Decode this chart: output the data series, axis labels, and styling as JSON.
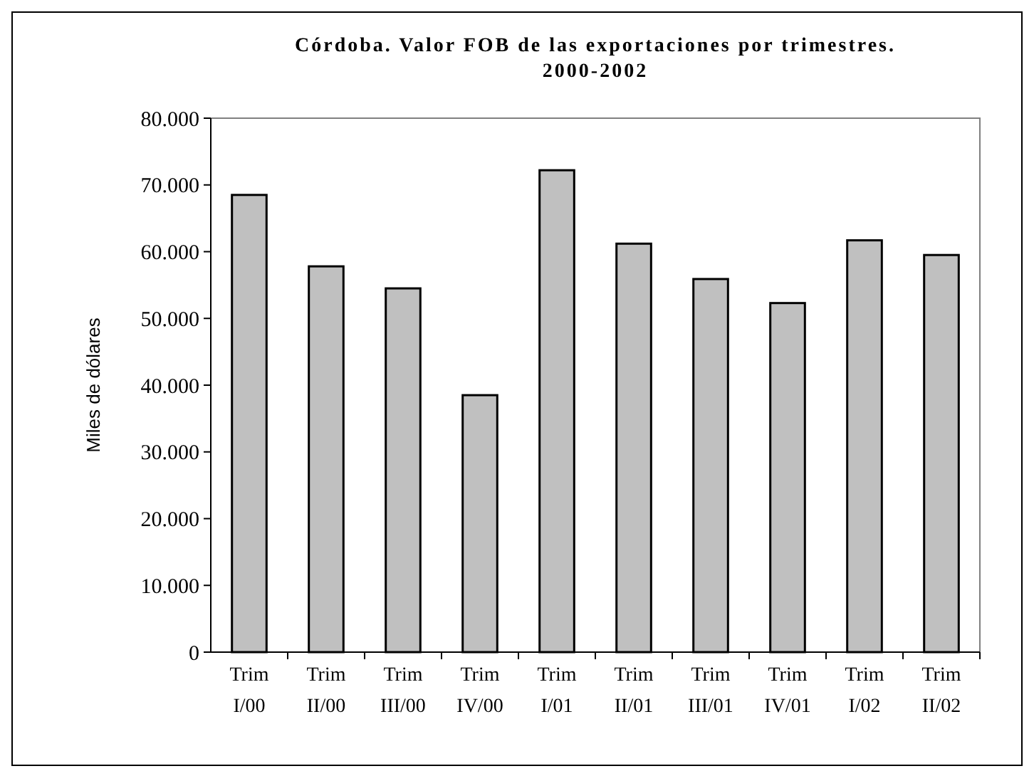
{
  "chart_data": {
    "type": "bar",
    "title": "Córdoba. Valor FOB de las exportaciones por trimestres. 2000-2002",
    "ylabel": "Miles de dólares",
    "categories": [
      "Trim I/00",
      "Trim II/00",
      "Trim III/00",
      "Trim IV/00",
      "Trim I/01",
      "Trim II/01",
      "Trim III/01",
      "Trim IV/01",
      "Trim I/02",
      "Trim II/02"
    ],
    "values": [
      68500,
      57800,
      54500,
      38500,
      72200,
      61200,
      55900,
      52300,
      61700,
      59500
    ],
    "color": "#c0c0c0",
    "ylim": [
      0,
      80000
    ],
    "yticks": [
      {
        "value": 0,
        "label": "0"
      },
      {
        "value": 10000,
        "label": "10.000"
      },
      {
        "value": 20000,
        "label": "20.000"
      },
      {
        "value": 30000,
        "label": "30.000"
      },
      {
        "value": 40000,
        "label": "40.000"
      },
      {
        "value": 50000,
        "label": "50.000"
      },
      {
        "value": 60000,
        "label": "60.000"
      },
      {
        "value": 70000,
        "label": "70.000"
      },
      {
        "value": 80000,
        "label": "80.000"
      }
    ],
    "grid": false
  }
}
